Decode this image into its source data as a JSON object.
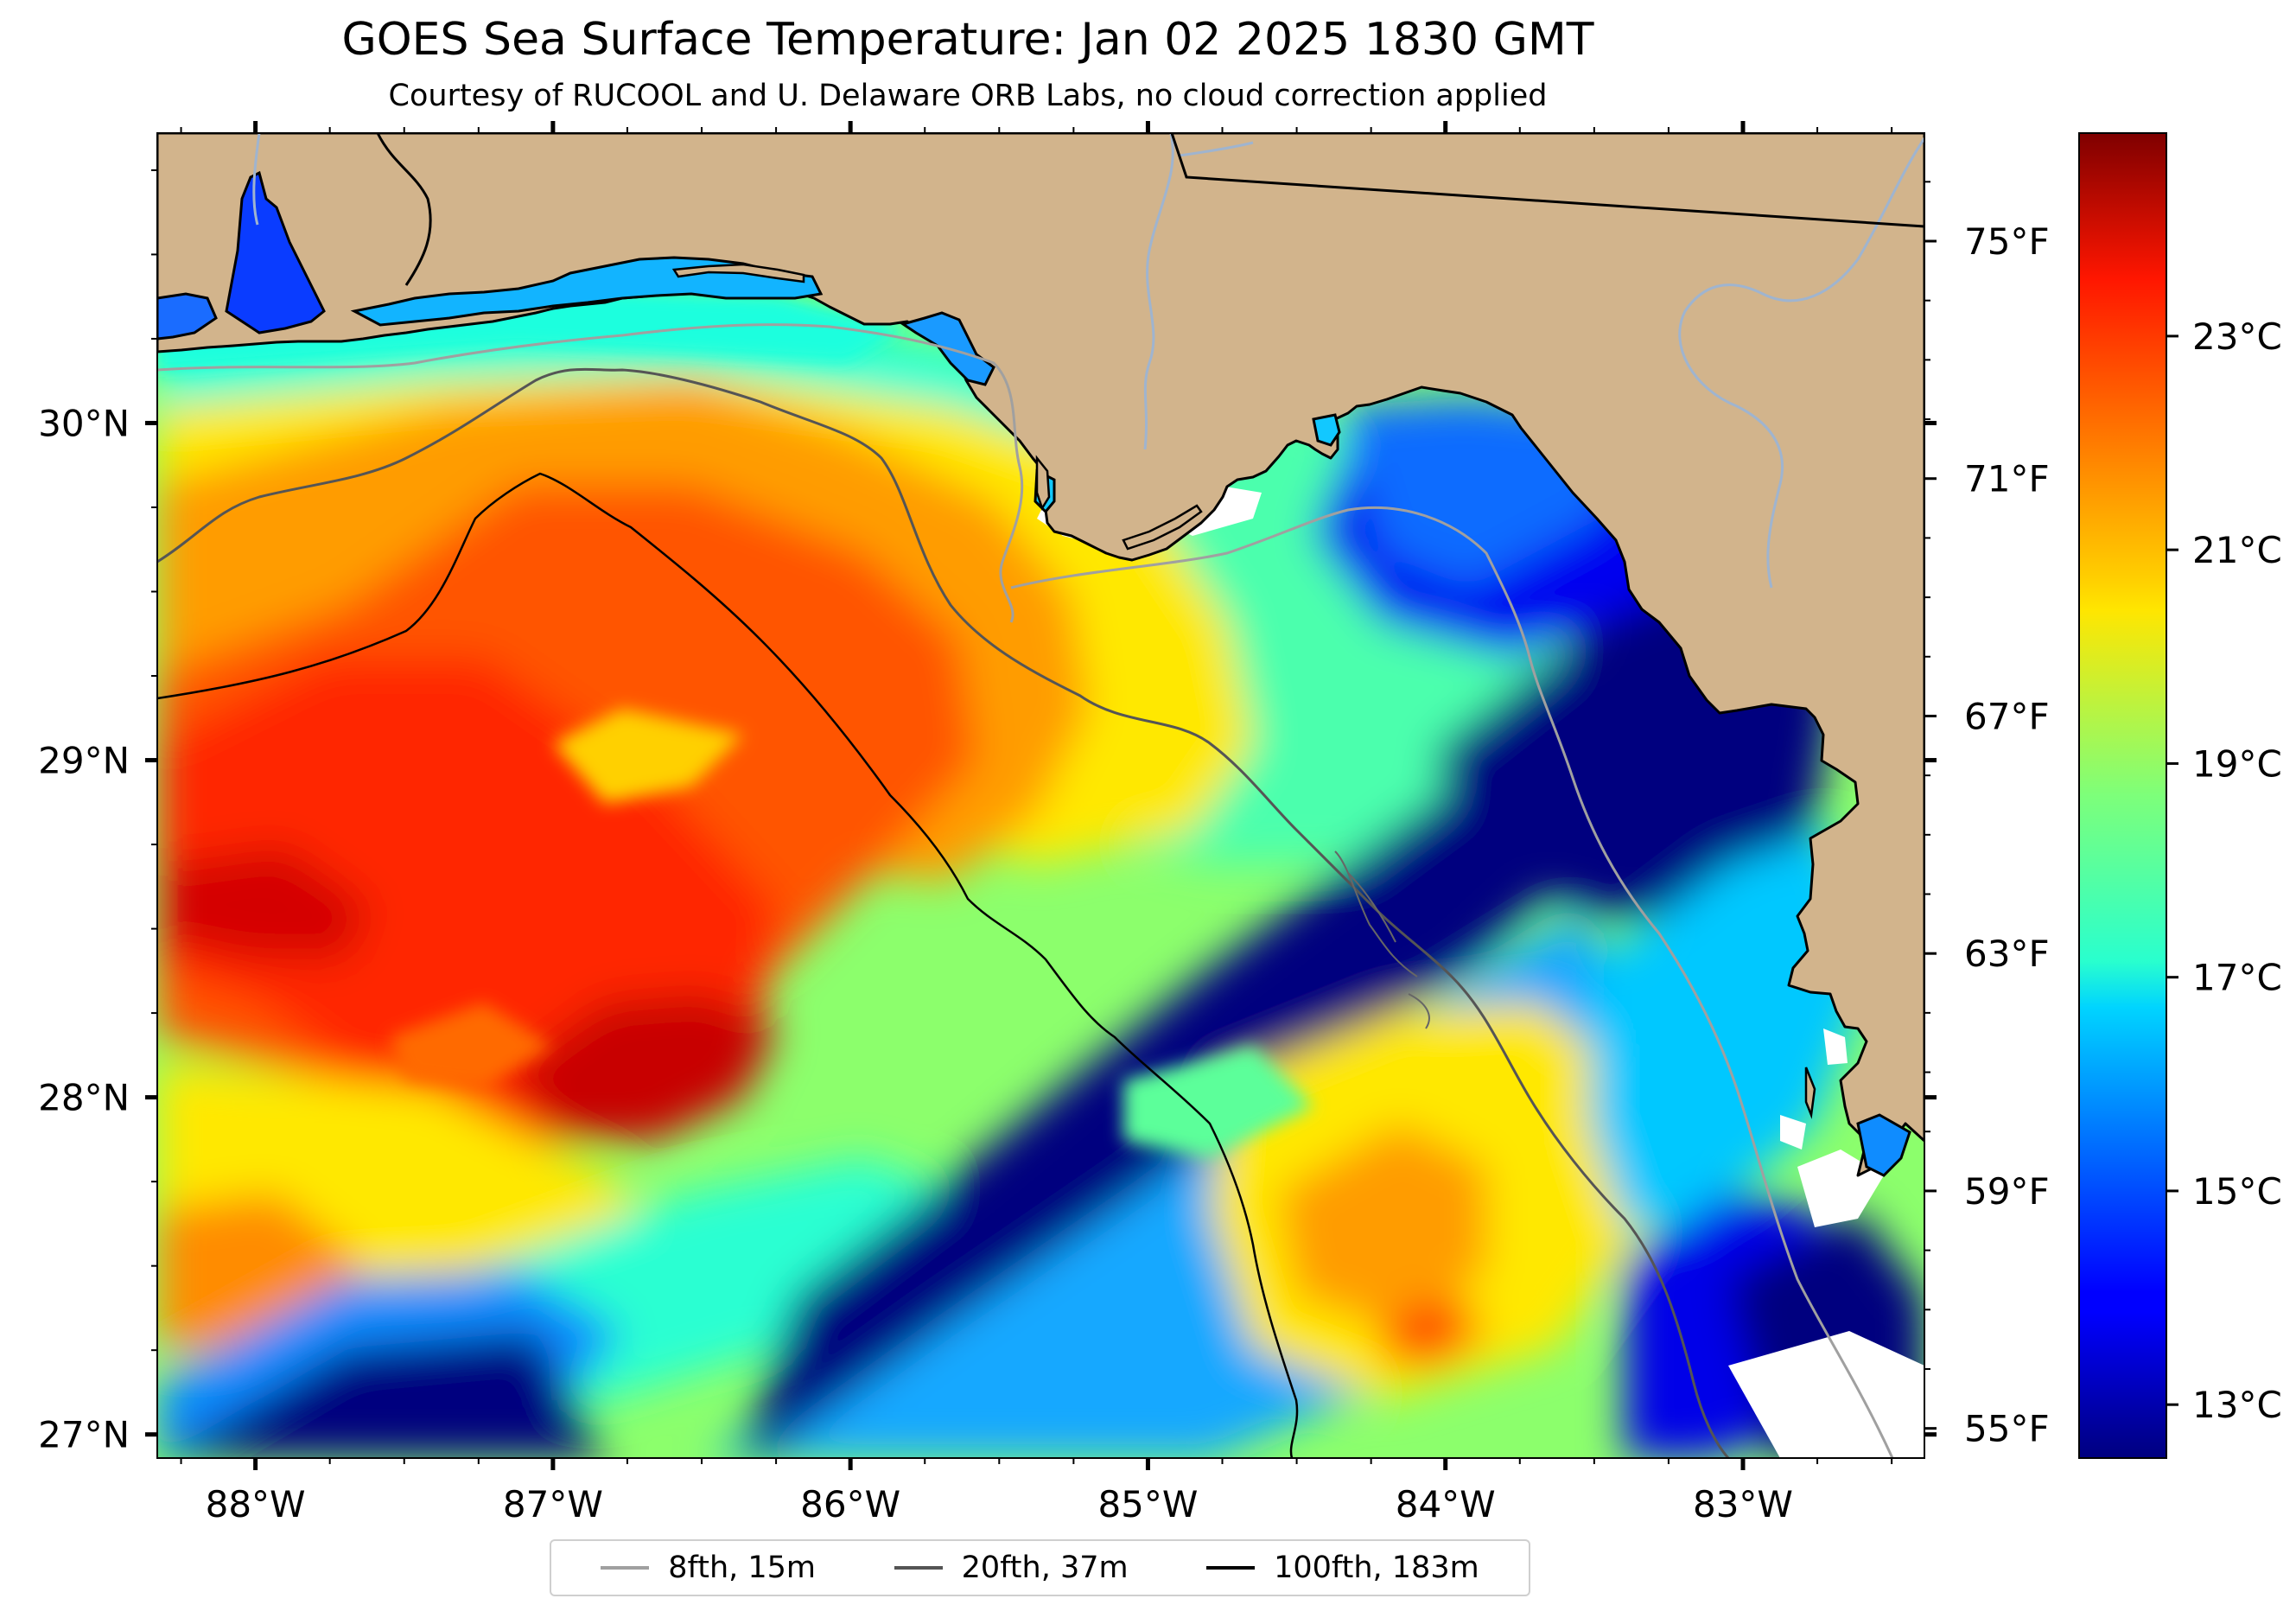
{
  "title": "GOES Sea Surface Temperature: Jan 02 2025 1830 GMT",
  "subtitle": "Courtesy of RUCOOL and U. Delaware ORB Labs, no cloud correction applied",
  "colors": {
    "land": "#d2b48c",
    "cloud": "#ffffff",
    "coast": "#000000",
    "river": "#9fb4cf",
    "isobath_8": "#a0a0a0",
    "isobath_20": "#555555",
    "isobath_100": "#000000"
  },
  "map": {
    "lon_range": [
      -88.33,
      -82.39
    ],
    "lat_range": [
      26.93,
      30.86
    ],
    "lon_ticks": [
      "88°W",
      "87°W",
      "86°W",
      "85°W",
      "84°W",
      "83°W"
    ],
    "lat_ticks": [
      "30°N",
      "29°N",
      "28°N",
      "27°N"
    ],
    "fahrenheit_ticks": [
      "75°F",
      "71°F",
      "67°F",
      "63°F",
      "59°F",
      "55°F"
    ]
  },
  "colorbar": {
    "range_c": [
      12.5,
      24.9
    ],
    "ticks": [
      "23°C",
      "21°C",
      "19°C",
      "17°C",
      "15°C",
      "13°C"
    ],
    "colormap": "jet"
  },
  "legend": [
    {
      "label": "8fth, 15m"
    },
    {
      "label": "20fth, 37m"
    },
    {
      "label": "100fth, 183m"
    }
  ]
}
